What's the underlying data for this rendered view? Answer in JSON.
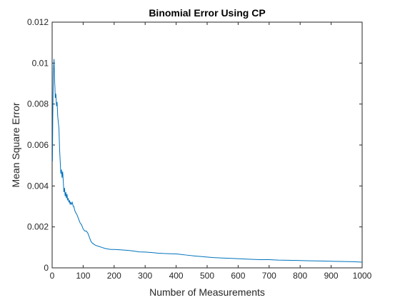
{
  "chart_data": {
    "type": "line",
    "title": "Binomial Error Using CP",
    "xlabel": "Number of Measurements",
    "ylabel": "Mean Square Error",
    "xlim": [
      0,
      1000
    ],
    "ylim": [
      0,
      0.012
    ],
    "xticks": [
      0,
      100,
      200,
      300,
      400,
      500,
      600,
      700,
      800,
      900,
      1000
    ],
    "xtick_labels": [
      "0",
      "100",
      "200",
      "300",
      "400",
      "500",
      "600",
      "700",
      "800",
      "900",
      "1000"
    ],
    "yticks": [
      0,
      0.002,
      0.004,
      0.006,
      0.008,
      0.01,
      0.012
    ],
    "ytick_labels": [
      "0",
      "0.002",
      "0.004",
      "0.006",
      "0.008",
      "0.01",
      "0.012"
    ],
    "grid": false,
    "line_color": "#0072BD",
    "series": [
      {
        "x": [
          1,
          2,
          3,
          4,
          5,
          6,
          7,
          8,
          9,
          10,
          12,
          14,
          16,
          18,
          20,
          22,
          24,
          26,
          28,
          30,
          32,
          34,
          36,
          38,
          40,
          42,
          44,
          46,
          48,
          50,
          52,
          54,
          56,
          58,
          60,
          62,
          65,
          68,
          70,
          73,
          76,
          80,
          85,
          90,
          95,
          100,
          105,
          110,
          115,
          120,
          125,
          130,
          140,
          150,
          160,
          170,
          180,
          190,
          200,
          220,
          240,
          260,
          280,
          300,
          320,
          340,
          360,
          380,
          400,
          430,
          460,
          490,
          520,
          550,
          580,
          610,
          640,
          670,
          700,
          730,
          760,
          790,
          820,
          850,
          880,
          910,
          940,
          970,
          1000
        ],
        "values": [
          0.0052,
          0.0074,
          0.0086,
          0.0094,
          0.0099,
          0.0102,
          0.0097,
          0.0091,
          0.0088,
          0.0083,
          0.0085,
          0.0079,
          0.0081,
          0.0074,
          0.0071,
          0.0068,
          0.0058,
          0.0052,
          0.0046,
          0.0048,
          0.0044,
          0.0047,
          0.0042,
          0.0037,
          0.0039,
          0.0035,
          0.0037,
          0.0034,
          0.0036,
          0.0033,
          0.0034,
          0.0032,
          0.0033,
          0.0031,
          0.0032,
          0.0031,
          0.0032,
          0.003,
          0.003,
          0.0028,
          0.0027,
          0.0026,
          0.0024,
          0.0022,
          0.0021,
          0.0019,
          0.0018,
          0.0018,
          0.0017,
          0.0015,
          0.0013,
          0.0012,
          0.0011,
          0.00105,
          0.001,
          0.00095,
          0.00092,
          0.0009,
          0.0009,
          0.00088,
          0.00086,
          0.00083,
          0.00078,
          0.00077,
          0.00075,
          0.00072,
          0.0007,
          0.00069,
          0.00068,
          0.00063,
          0.00058,
          0.00054,
          0.0005,
          0.00048,
          0.00046,
          0.00044,
          0.00042,
          0.0004,
          0.0004,
          0.00038,
          0.00037,
          0.00036,
          0.00035,
          0.00034,
          0.00033,
          0.00032,
          0.00031,
          0.0003,
          0.00028
        ]
      }
    ]
  }
}
